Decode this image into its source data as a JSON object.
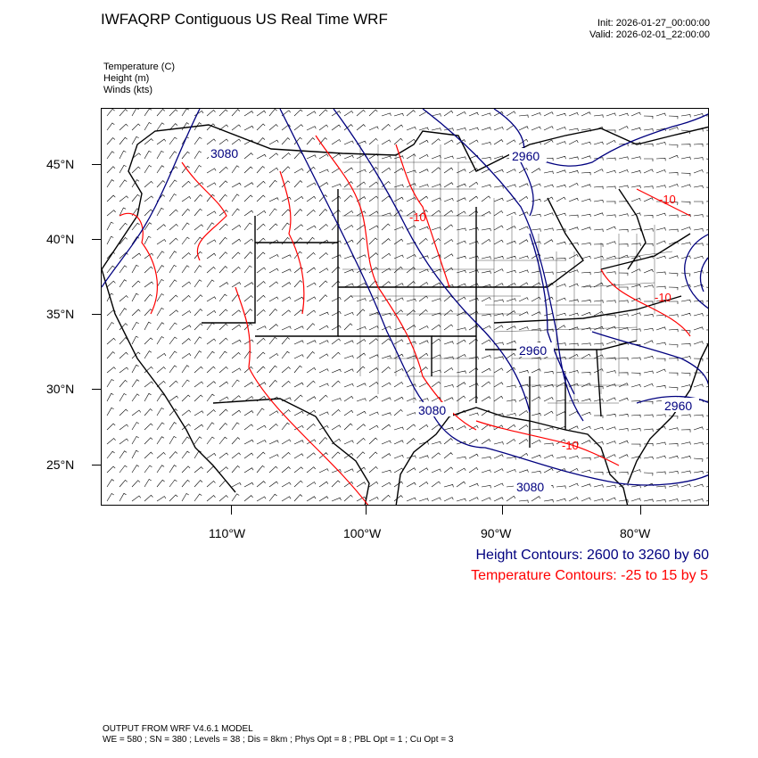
{
  "header": {
    "title": "IWFAQRP Contiguous US Real Time WRF",
    "init": "Init: 2026-01-27_00:00:00",
    "valid": "Valid: 2026-02-01_22:00:00"
  },
  "variables": [
    "Temperature   (C)",
    "Height   (m)",
    "Winds   (kts)"
  ],
  "axes": {
    "lat_labels": [
      "45°N",
      "40°N",
      "35°N",
      "30°N",
      "25°N"
    ],
    "lon_labels": [
      "110°W",
      "100°W",
      "90°W",
      "80°W"
    ]
  },
  "contour_labels": {
    "height": [
      "3080",
      "2960",
      "2960",
      "2960",
      "3080",
      "3080"
    ],
    "temperature": [
      "-10",
      "-10",
      "-10",
      "-10"
    ]
  },
  "legend": {
    "height_text": "Height Contours: 2600 to 3260 by 60",
    "height_color": "#00007f",
    "temp_text": "Temperature Contours: -25 to 15 by 5",
    "temp_color": "#ff0000"
  },
  "footer": {
    "line1": "OUTPUT FROM WRF V4.6.1 MODEL",
    "line2": "WE = 580 ; SN = 380 ; Levels = 38 ; Dis = 8km ; Phys Opt = 8 ; PBL Opt = 1 ; Cu Opt = 3"
  }
}
